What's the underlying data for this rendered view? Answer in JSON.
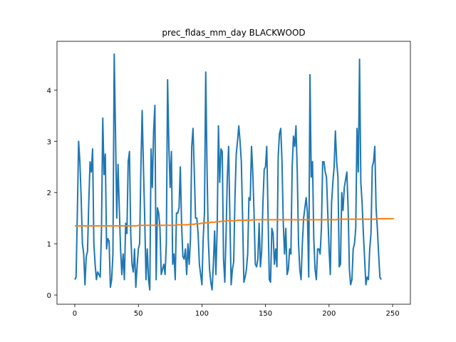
{
  "chart_data": {
    "type": "line",
    "title": "prec_fldas_mm_day BLACKWOOD",
    "xlabel": "",
    "ylabel": "",
    "xlim": [
      -14,
      264
    ],
    "ylim": [
      -0.18,
      4.95
    ],
    "xticks": [
      0,
      50,
      100,
      150,
      200,
      250
    ],
    "yticks": [
      0,
      1,
      2,
      3,
      4
    ],
    "grid": false,
    "colors": {
      "series_1": "#1f77b4",
      "series_2": "#ff7f0e"
    },
    "series": [
      {
        "values": [
          0.3,
          0.35,
          1.6,
          3.0,
          2.6,
          1.9,
          1.0,
          0.8,
          0.2,
          0.75,
          0.85,
          1.8,
          2.6,
          2.4,
          2.85,
          1.0,
          0.6,
          0.3,
          0.45,
          0.4,
          0.35,
          1.3,
          3.45,
          2.35,
          2.75,
          0.9,
          1.1,
          1.05,
          0.15,
          0.3,
          0.8,
          4.7,
          3.2,
          1.5,
          2.55,
          1.7,
          0.9,
          0.4,
          0.8,
          0.3,
          1.4,
          1.2,
          2.6,
          2.8,
          1.2,
          0.6,
          0.45,
          0.9,
          0.15,
          0.55,
          0.9,
          1.0,
          2.5,
          3.6,
          2.5,
          1.5,
          0.3,
          0.9,
          0.3,
          0.1,
          2.85,
          2.1,
          3.2,
          3.7,
          0.3,
          1.7,
          1.6,
          1.3,
          0.4,
          0.5,
          0.6,
          0.4,
          1.0,
          4.2,
          2.9,
          2.1,
          2.8,
          0.6,
          0.8,
          0.3,
          1.6,
          1.6,
          1.7,
          2.5,
          1.4,
          0.75,
          0.7,
          0.9,
          0.4,
          1.0,
          0.6,
          1.1,
          2.9,
          3.25,
          2.4,
          1.5,
          1.5,
          1.2,
          0.6,
          0.4,
          0.2,
          1.1,
          1.6,
          4.35,
          2.5,
          1.1,
          0.5,
          0.25,
          0.1,
          0.6,
          1.25,
          0.4,
          1.3,
          3.3,
          2.2,
          2.85,
          2.8,
          0.7,
          0.25,
          1.2,
          2.3,
          2.9,
          1.5,
          0.2,
          0.5,
          0.65,
          1.9,
          2.75,
          3.0,
          3.3,
          3.0,
          2.6,
          1.5,
          0.25,
          0.35,
          0.5,
          0.8,
          1.9,
          1.85,
          2.9,
          2.4,
          1.6,
          0.6,
          0.55,
          0.7,
          1.4,
          0.55,
          0.85,
          1.8,
          2.45,
          2.5,
          2.9,
          1.6,
          0.3,
          0.25,
          1.3,
          1.2,
          0.6,
          0.9,
          0.55,
          2.7,
          3.15,
          3.25,
          2.6,
          1.4,
          0.8,
          1.3,
          0.4,
          0.5,
          0.9,
          0.8,
          2.5,
          3.1,
          2.9,
          3.3,
          2.4,
          1.0,
          0.5,
          0.3,
          1.0,
          1.5,
          1.7,
          1.9,
          1.6,
          0.35,
          4.3,
          2.3,
          2.6,
          1.1,
          0.5,
          0.3,
          0.9,
          0.9,
          0.8,
          1.3,
          2.6,
          2.6,
          2.4,
          2.3,
          1.6,
          0.9,
          0.4,
          1.8,
          2.2,
          2.5,
          3.2,
          2.6,
          2.3,
          0.55,
          0.6,
          2.0,
          1.65,
          2.1,
          2.25,
          2.4,
          1.7,
          0.5,
          0.2,
          0.3,
          0.9,
          1.0,
          1.3,
          3.25,
          2.4,
          4.6,
          2.2,
          1.8,
          1.2,
          0.7,
          0.2,
          0.35,
          0.3,
          0.9,
          1.2,
          2.5,
          2.6,
          2.9,
          1.7,
          1.3,
          0.8,
          0.35,
          0.3
        ]
      },
      {
        "values": [
          1.35,
          1.35,
          1.35,
          1.35,
          1.35,
          1.35,
          1.35,
          1.35,
          1.35,
          1.35,
          1.35,
          1.35,
          1.35,
          1.35,
          1.35,
          1.35,
          1.35,
          1.35,
          1.35,
          1.35,
          1.35,
          1.35,
          1.35,
          1.35,
          1.35,
          1.35,
          1.35,
          1.35,
          1.35,
          1.35,
          1.35,
          1.35,
          1.35,
          1.35,
          1.35,
          1.35,
          1.35,
          1.35,
          1.35,
          1.35,
          1.35,
          1.35,
          1.35,
          1.35,
          1.35,
          1.35,
          1.35,
          1.35,
          1.35,
          1.35,
          1.36,
          1.36,
          1.36,
          1.36,
          1.36,
          1.36,
          1.36,
          1.36,
          1.36,
          1.36,
          1.36,
          1.36,
          1.36,
          1.36,
          1.36,
          1.36,
          1.36,
          1.36,
          1.36,
          1.36,
          1.36,
          1.36,
          1.36,
          1.36,
          1.36,
          1.36,
          1.36,
          1.36,
          1.36,
          1.36,
          1.37,
          1.37,
          1.37,
          1.37,
          1.37,
          1.37,
          1.37,
          1.37,
          1.37,
          1.37,
          1.38,
          1.38,
          1.38,
          1.38,
          1.38,
          1.39,
          1.39,
          1.39,
          1.39,
          1.4,
          1.4,
          1.4,
          1.4,
          1.41,
          1.41,
          1.41,
          1.41,
          1.42,
          1.42,
          1.42,
          1.42,
          1.43,
          1.43,
          1.43,
          1.43,
          1.44,
          1.44,
          1.44,
          1.44,
          1.44,
          1.45,
          1.45,
          1.45,
          1.45,
          1.45,
          1.45,
          1.45,
          1.45,
          1.46,
          1.46,
          1.46,
          1.46,
          1.46,
          1.46,
          1.46,
          1.46,
          1.46,
          1.46,
          1.46,
          1.46,
          1.47,
          1.47,
          1.47,
          1.47,
          1.47,
          1.47,
          1.47,
          1.47,
          1.47,
          1.47,
          1.47,
          1.47,
          1.47,
          1.47,
          1.47,
          1.47,
          1.47,
          1.47,
          1.47,
          1.47,
          1.47,
          1.47,
          1.47,
          1.47,
          1.47,
          1.47,
          1.47,
          1.47,
          1.47,
          1.47,
          1.47,
          1.47,
          1.47,
          1.47,
          1.47,
          1.47,
          1.47,
          1.47,
          1.47,
          1.47,
          1.47,
          1.47,
          1.47,
          1.47,
          1.47,
          1.47,
          1.47,
          1.47,
          1.47,
          1.47,
          1.47,
          1.47,
          1.47,
          1.47,
          1.47,
          1.47,
          1.47,
          1.47,
          1.47,
          1.47,
          1.47,
          1.47,
          1.47,
          1.47,
          1.47,
          1.47,
          1.47,
          1.48,
          1.48,
          1.48,
          1.48,
          1.48,
          1.48,
          1.48,
          1.48,
          1.48,
          1.48,
          1.48,
          1.48,
          1.48,
          1.48,
          1.48,
          1.48,
          1.48,
          1.48,
          1.48,
          1.48,
          1.48,
          1.48,
          1.48,
          1.48,
          1.48,
          1.48,
          1.48,
          1.48,
          1.48,
          1.48,
          1.48,
          1.49,
          1.49,
          1.49,
          1.49,
          1.49,
          1.49,
          1.49,
          1.49,
          1.49,
          1.49,
          1.49,
          1.49,
          1.49,
          1.49
        ]
      }
    ]
  }
}
